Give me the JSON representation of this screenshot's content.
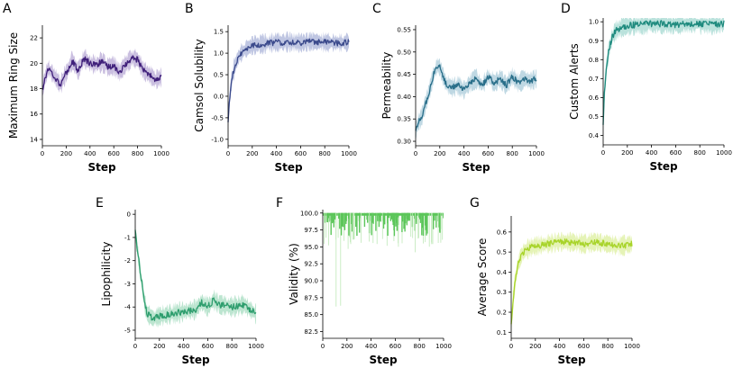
{
  "chart_data": [
    {
      "type": "line",
      "panel_label": "A",
      "title": "",
      "xlabel": "Step",
      "ylabel": "Maximum Ring Size",
      "xlim": [
        0,
        1000
      ],
      "ylim": [
        13.5,
        23
      ],
      "xticks": [
        "0",
        "200",
        "400",
        "600",
        "800",
        "1000"
      ],
      "yticks": [
        "14",
        "16",
        "18",
        "20",
        "22"
      ],
      "color": "#3f1f7a",
      "band_color": "#b8a9d6",
      "series": [
        {
          "name": "mean",
          "x": [
            0,
            20,
            50,
            100,
            150,
            200,
            250,
            300,
            350,
            400,
            450,
            500,
            550,
            600,
            650,
            700,
            750,
            800,
            850,
            900,
            950,
            1000
          ],
          "y": [
            17.8,
            18.8,
            19.6,
            19.0,
            18.3,
            19.2,
            20.2,
            19.4,
            20.4,
            20.0,
            19.9,
            20.1,
            19.7,
            19.8,
            19.3,
            19.9,
            20.4,
            20.3,
            19.4,
            19.1,
            18.7,
            18.9
          ]
        }
      ]
    },
    {
      "type": "line",
      "panel_label": "B",
      "title": "",
      "xlabel": "Step",
      "ylabel": "Camsol Solubility",
      "xlim": [
        0,
        1000
      ],
      "ylim": [
        -1.15,
        1.65
      ],
      "xticks": [
        "0",
        "200",
        "400",
        "600",
        "800",
        "1000"
      ],
      "yticks": [
        "-1.0",
        "-0.5",
        "0.0",
        "0.5",
        "1.0",
        "1.5"
      ],
      "color": "#3b4a8c",
      "band_color": "#aab3d8",
      "series": [
        {
          "name": "mean",
          "x": [
            0,
            10,
            25,
            50,
            75,
            100,
            150,
            200,
            300,
            400,
            500,
            600,
            700,
            800,
            900,
            1000
          ],
          "y": [
            -0.55,
            -0.15,
            0.3,
            0.65,
            0.85,
            0.98,
            1.1,
            1.18,
            1.22,
            1.25,
            1.26,
            1.24,
            1.27,
            1.25,
            1.24,
            1.25
          ]
        }
      ]
    },
    {
      "type": "line",
      "panel_label": "C",
      "title": "",
      "xlabel": "Step",
      "ylabel": "Permeability",
      "xlim": [
        0,
        1000
      ],
      "ylim": [
        0.29,
        0.56
      ],
      "xticks": [
        "0",
        "200",
        "400",
        "600",
        "800",
        "1000"
      ],
      "yticks": [
        "0.30",
        "0.35",
        "0.40",
        "0.45",
        "0.50",
        "0.55"
      ],
      "color": "#2a6f8a",
      "band_color": "#a9cbd9",
      "series": [
        {
          "name": "mean",
          "x": [
            0,
            20,
            50,
            100,
            150,
            180,
            200,
            250,
            300,
            350,
            400,
            450,
            500,
            550,
            600,
            650,
            700,
            750,
            800,
            850,
            900,
            950,
            1000
          ],
          "y": [
            0.325,
            0.34,
            0.355,
            0.4,
            0.45,
            0.47,
            0.465,
            0.43,
            0.42,
            0.425,
            0.415,
            0.43,
            0.44,
            0.425,
            0.445,
            0.43,
            0.44,
            0.425,
            0.445,
            0.43,
            0.44,
            0.435,
            0.44
          ]
        }
      ]
    },
    {
      "type": "line",
      "panel_label": "D",
      "title": "",
      "xlabel": "Step",
      "ylabel": "Custom Alerts",
      "xlim": [
        0,
        1000
      ],
      "ylim": [
        0.35,
        1.02
      ],
      "xticks": [
        "0",
        "200",
        "400",
        "600",
        "800",
        "1000"
      ],
      "yticks": [
        "0.4",
        "0.5",
        "0.6",
        "0.7",
        "0.8",
        "0.9",
        "1.0"
      ],
      "color": "#1e8a7e",
      "band_color": "#a3d8d0",
      "series": [
        {
          "name": "mean",
          "x": [
            0,
            10,
            25,
            50,
            75,
            100,
            150,
            200,
            300,
            400,
            500,
            600,
            700,
            800,
            900,
            1000
          ],
          "y": [
            0.45,
            0.62,
            0.75,
            0.86,
            0.92,
            0.95,
            0.97,
            0.98,
            0.985,
            0.99,
            0.99,
            0.985,
            0.99,
            0.99,
            0.985,
            0.99
          ]
        }
      ]
    },
    {
      "type": "line",
      "panel_label": "E",
      "title": "",
      "xlabel": "Step",
      "ylabel": "Lipophilicity",
      "xlim": [
        0,
        1000
      ],
      "ylim": [
        -5.35,
        0.2
      ],
      "xticks": [
        "0",
        "200",
        "400",
        "600",
        "800",
        "1000"
      ],
      "yticks": [
        "-5",
        "-4",
        "-3",
        "-2",
        "-1",
        "0"
      ],
      "color": "#2e9e6e",
      "band_color": "#a5dcc0",
      "series": [
        {
          "name": "mean",
          "x": [
            0,
            20,
            50,
            80,
            100,
            150,
            200,
            300,
            400,
            500,
            550,
            600,
            650,
            700,
            800,
            900,
            950,
            1000
          ],
          "y": [
            -0.8,
            -1.6,
            -2.8,
            -3.9,
            -4.3,
            -4.5,
            -4.4,
            -4.3,
            -4.2,
            -4.1,
            -3.8,
            -4.0,
            -3.7,
            -3.9,
            -4.0,
            -3.9,
            -4.1,
            -4.3
          ]
        }
      ]
    },
    {
      "type": "bar",
      "panel_label": "F",
      "title": "",
      "xlabel": "Step",
      "ylabel": "Validity (%)",
      "xlim": [
        0,
        1000
      ],
      "ylim": [
        81.5,
        100.5
      ],
      "xticks": [
        "0",
        "200",
        "400",
        "600",
        "800",
        "1000"
      ],
      "yticks": [
        "82.5",
        "85.0",
        "87.5",
        "90.0",
        "92.5",
        "95.0",
        "97.5",
        "100.0"
      ],
      "color": "#5cc65a",
      "band_color": "#bfe8b8",
      "series": [
        {
          "name": "mean",
          "x": [
            0,
            50,
            100,
            200,
            300,
            400,
            500,
            600,
            700,
            800,
            900,
            1000
          ],
          "y": [
            100.0,
            98.8,
            99.2,
            99.4,
            99.3,
            99.5,
            99.4,
            99.3,
            99.5,
            99.4,
            99.5,
            99.4
          ]
        }
      ]
    },
    {
      "type": "line",
      "panel_label": "G",
      "title": "",
      "xlabel": "Step",
      "ylabel": "Average Score",
      "xlim": [
        0,
        1000
      ],
      "ylim": [
        0.07,
        0.68
      ],
      "xticks": [
        "0",
        "200",
        "400",
        "600",
        "800",
        "1000"
      ],
      "yticks": [
        "0.1",
        "0.2",
        "0.3",
        "0.4",
        "0.5",
        "0.6"
      ],
      "color": "#a8d42a",
      "band_color": "#dcef9e",
      "series": [
        {
          "name": "mean",
          "x": [
            0,
            10,
            25,
            50,
            75,
            100,
            150,
            200,
            300,
            400,
            500,
            600,
            700,
            800,
            900,
            1000
          ],
          "y": [
            0.14,
            0.22,
            0.32,
            0.42,
            0.47,
            0.5,
            0.52,
            0.53,
            0.54,
            0.55,
            0.55,
            0.54,
            0.55,
            0.54,
            0.53,
            0.54
          ]
        }
      ]
    }
  ]
}
